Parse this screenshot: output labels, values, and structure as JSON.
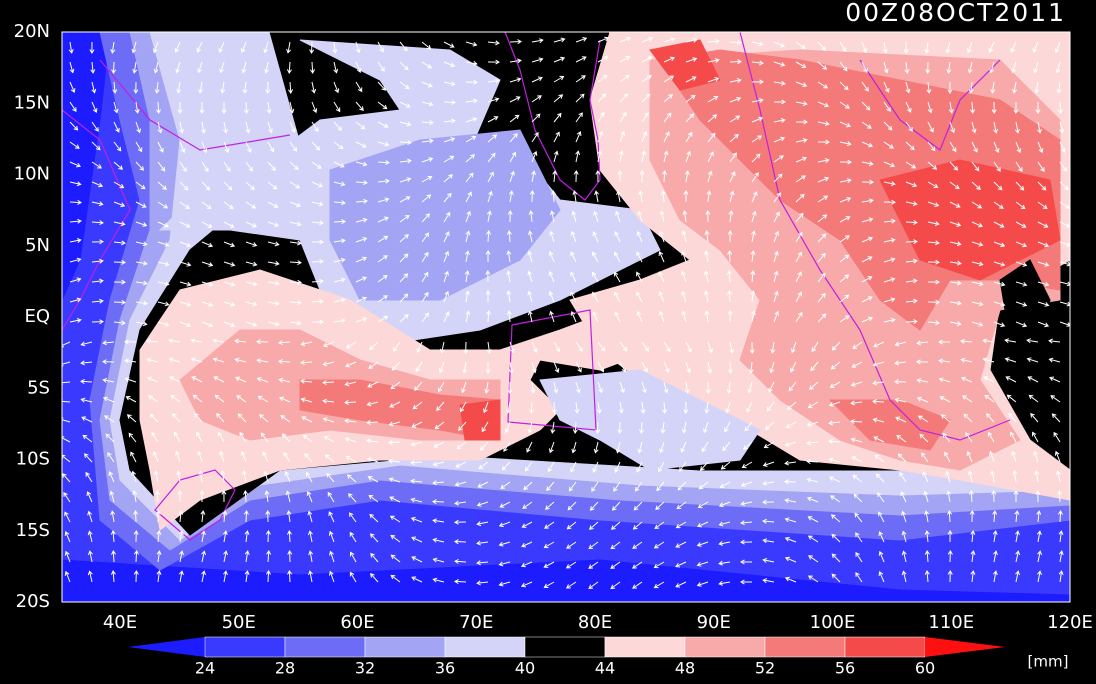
{
  "title": "00Z08OCT2011",
  "map": {
    "lat_labels": [
      "20N",
      "15N",
      "10N",
      "5N",
      "EQ",
      "5S",
      "10S",
      "15S",
      "20S"
    ],
    "lon_labels": [
      "40E",
      "50E",
      "60E",
      "70E",
      "80E",
      "90E",
      "100E",
      "110E",
      "120E"
    ]
  },
  "colorbar": {
    "levels": [
      24,
      28,
      32,
      36,
      40,
      44,
      48,
      52,
      56,
      60
    ],
    "colors": [
      "#1c1cff",
      "#3a3aff",
      "#6c6cf6",
      "#a4a4f4",
      "#d4d4f8",
      "#000000",
      "#fcd8d8",
      "#f8aaaa",
      "#f47a7a",
      "#f44a4a",
      "#ff1010"
    ],
    "unit": "[mm]"
  }
}
